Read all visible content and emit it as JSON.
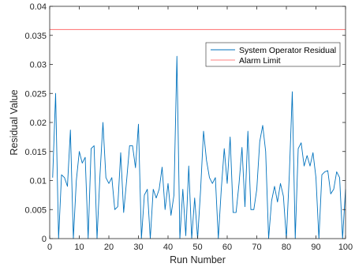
{
  "chart_data": {
    "type": "line",
    "title": "",
    "xlabel": "Run Number",
    "ylabel": "Residual Value",
    "xlim": [
      0,
      100
    ],
    "ylim": [
      0,
      0.04
    ],
    "xticks": [
      0,
      10,
      20,
      30,
      40,
      50,
      60,
      70,
      80,
      90,
      100
    ],
    "xtick_labels": [
      "0",
      "10",
      "20",
      "30",
      "40",
      "50",
      "60",
      "70",
      "80",
      "90",
      "100"
    ],
    "yticks": [
      0,
      0.005,
      0.01,
      0.015,
      0.02,
      0.025,
      0.03,
      0.035,
      0.04
    ],
    "ytick_labels": [
      "0",
      "0.005",
      "0.01",
      "0.015",
      "0.02",
      "0.025",
      "0.03",
      "0.035",
      "0.04"
    ],
    "grid": false,
    "legend_position": "top-right",
    "series": [
      {
        "name": "System Operator Residual",
        "color": "#0072BD",
        "x": [
          1,
          2,
          3,
          4,
          5,
          6,
          7,
          8,
          9,
          10,
          11,
          12,
          13,
          14,
          15,
          16,
          17,
          18,
          19,
          20,
          21,
          22,
          23,
          24,
          25,
          26,
          27,
          28,
          29,
          30,
          31,
          32,
          33,
          34,
          35,
          36,
          37,
          38,
          39,
          40,
          41,
          42,
          43,
          44,
          45,
          46,
          47,
          48,
          49,
          50,
          51,
          52,
          53,
          54,
          55,
          56,
          57,
          58,
          59,
          60,
          61,
          62,
          63,
          64,
          65,
          66,
          67,
          68,
          69,
          70,
          71,
          72,
          73,
          74,
          75,
          76,
          77,
          78,
          79,
          80,
          81,
          82,
          83,
          84,
          85,
          86,
          87,
          88,
          89,
          90,
          91,
          92,
          93,
          94,
          95,
          96,
          97,
          98,
          99,
          100
        ],
        "y": [
          0.0105,
          0.025,
          0.0,
          0.011,
          0.0105,
          0.009,
          0.0187,
          0.0,
          0.01,
          0.015,
          0.013,
          0.014,
          0.0,
          0.0155,
          0.016,
          0.0,
          0.011,
          0.02,
          0.0105,
          0.0095,
          0.0105,
          0.005,
          0.0055,
          0.0148,
          0.0045,
          0.01,
          0.016,
          0.016,
          0.0122,
          0.0197,
          0.0,
          0.0075,
          0.0085,
          0.0,
          0.0085,
          0.007,
          0.0085,
          0.0123,
          0.005,
          0.0095,
          0.004,
          0.0075,
          0.0314,
          0.0,
          0.0085,
          0.0005,
          0.0125,
          0.0,
          0.007,
          0.0,
          0.0083,
          0.0185,
          0.0135,
          0.0105,
          0.0095,
          0.0105,
          0.0,
          0.0085,
          0.0155,
          0.0095,
          0.0175,
          0.0045,
          0.0045,
          0.0095,
          0.0157,
          0.0055,
          0.0185,
          0.005,
          0.005,
          0.0085,
          0.0167,
          0.0195,
          0.015,
          0.0,
          0.0065,
          0.009,
          0.0063,
          0.0095,
          0.0073,
          0.0,
          0.011,
          0.0253,
          0.0,
          0.0155,
          0.0165,
          0.0125,
          0.0143,
          0.0125,
          0.0148,
          0.0105,
          0.0,
          0.011,
          0.0115,
          0.0117,
          0.0077,
          0.0085,
          0.0115,
          0.0105,
          0.0,
          0.0085
        ],
        "_note": ""
      },
      {
        "name": "Alarm Limit",
        "color": "#FF8080",
        "x": [
          0,
          100
        ],
        "y": [
          0.036,
          0.036
        ]
      }
    ]
  }
}
